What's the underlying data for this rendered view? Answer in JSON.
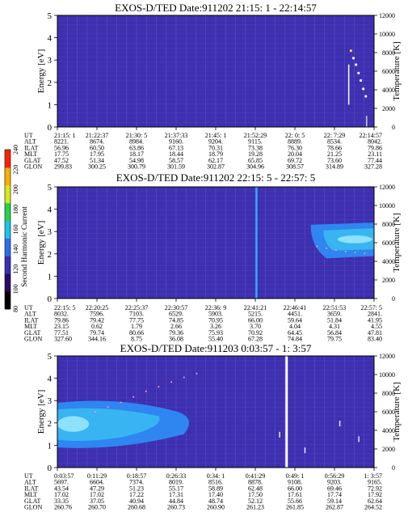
{
  "colorbar": {
    "label": "Second Harmonic Current",
    "ticks": [
      "80",
      "100",
      "120",
      "140",
      "160",
      "180",
      "200",
      "220",
      "240"
    ],
    "range": [
      80,
      240
    ],
    "colors": [
      "#000000",
      "#2a0a66",
      "#3a2fb8",
      "#2f6cf0",
      "#19c6e8",
      "#27d24a",
      "#d8e81f",
      "#ffb000",
      "#ff2200"
    ]
  },
  "style": {
    "background": "#3d2fb0",
    "grid": "#6f68d8",
    "enhancement_outer": "#2f86f0",
    "enhancement_mid": "#38b4f2",
    "enhancement_core": "#8fe2ff",
    "trace_white": "#f4f4f4",
    "trace_yellow": "#ffd23a",
    "trace_dots": "#ff9ab5"
  },
  "row_labels": [
    "UT",
    "ALT",
    "ILAT",
    "MLT",
    "GLAT",
    "GLON"
  ],
  "chart_data": [
    {
      "type": "heatmap",
      "title": "EXOS-D/TED   Date:911202  21:15: 1 - 22:14:57",
      "ylabel": "Energy [eV]",
      "y2label": "Temperature [K]",
      "ylim": [
        0,
        5
      ],
      "y2lim": [
        0,
        12000
      ],
      "y_ticks": [
        "0",
        "1",
        "2",
        "3",
        "4",
        "5"
      ],
      "y2_ticks": [
        "0",
        "2000",
        "4000",
        "6000",
        "8000",
        "10000",
        "12000"
      ],
      "grid": true,
      "x_table": [
        [
          "21:15: 1",
          "21:22:37",
          "21:30: 5",
          "21:37:33",
          "21:45: 1",
          "21:52:29",
          "22: 0: 5",
          "22: 7:29",
          "22:14:57"
        ],
        [
          "8221.",
          "8674.",
          "8984.",
          "9160.",
          "9204.",
          "9115.",
          "8889.",
          "8534.",
          "8042."
        ],
        [
          "56.96",
          "60.50",
          "63.86",
          "67.13",
          "70.31",
          "73.38",
          "76.30",
          "78.66",
          "79.86"
        ],
        [
          "17.75",
          "17.95",
          "18.17",
          "18.44",
          "18.79",
          "19.28",
          "20.04",
          "21.25",
          "23.11"
        ],
        [
          "47.52",
          "51.34",
          "54.98",
          "58.57",
          "62.17",
          "65.85",
          "69.72",
          "73.60",
          "77.44"
        ],
        [
          "299.83",
          "300.25",
          "300.79",
          "301.59",
          "302.87",
          "304.96",
          "308.57",
          "314.89",
          "327.28"
        ]
      ],
      "temperature_trace": {
        "x": [
          0.927,
          0.935,
          0.943,
          0.951,
          0.958,
          0.966,
          0.974
        ],
        "y": [
          8200,
          7400,
          6700,
          5800,
          5000,
          4100,
          3300
        ]
      }
    },
    {
      "type": "heatmap",
      "title": "EXOS-D/TED   Date:911202  22:15: 5 - 22:57: 5",
      "ylabel": "Energy [eV]",
      "y2label": "Temperature [K]",
      "ylim": [
        0,
        5
      ],
      "y2lim": [
        0,
        12000
      ],
      "y_ticks": [
        "0",
        "1",
        "2",
        "3",
        "4",
        "5"
      ],
      "y2_ticks": [
        "0",
        "2000",
        "4000",
        "6000",
        "8000",
        "10000",
        "12000"
      ],
      "grid": true,
      "x_table": [
        [
          "22:15: 5",
          "22:20:25",
          "22:25:37",
          "22:30:57",
          "22:36: 9",
          "22:41:21",
          "22:46:41",
          "22:51:53",
          "22:57: 5"
        ],
        [
          "8032.",
          "7596.",
          "7103.",
          "6529.",
          "5903.",
          "5215.",
          "4451.",
          "3659.",
          "2841."
        ],
        [
          "79.86",
          "79.42",
          "77.75",
          "74.85",
          "70.95",
          "66.00",
          "59.64",
          "51.84",
          "41.95"
        ],
        [
          "23.15",
          "0.62",
          "1.79",
          "2.66",
          "3.26",
          "3.70",
          "4.04",
          "4.31",
          "4.55"
        ],
        [
          "77.51",
          "79.74",
          "80.66",
          "79.36",
          "75.93",
          "70.92",
          "64.45",
          "56.84",
          "47.81"
        ],
        [
          "327.60",
          "344.16",
          "8.75",
          "36.08",
          "55.40",
          "67.28",
          "74.84",
          "79.75",
          "83.40"
        ]
      ],
      "temperature_trace": {
        "x": [
          0.82,
          0.85,
          0.88,
          0.91,
          0.94,
          0.97,
          1.0
        ],
        "y": [
          5600,
          5400,
          5200,
          5050,
          4950,
          4850,
          4800
        ]
      }
    },
    {
      "type": "heatmap",
      "title": "EXOS-D/TED   Date:911203  0:03:57 - 1: 3:57",
      "ylabel": "Energy [eV]",
      "y2label": "Temperature [K]",
      "ylim": [
        0,
        5
      ],
      "y2lim": [
        0,
        12000
      ],
      "y_ticks": [
        "0",
        "1",
        "2",
        "3",
        "4",
        "5"
      ],
      "y2_ticks": [
        "0",
        "2000",
        "4000",
        "6000",
        "8000",
        "10000",
        "12000"
      ],
      "grid": true,
      "x_table": [
        [
          "0:03:57",
          "0:11:29",
          "0:18:57",
          "0:26:33",
          "0:34: 1",
          "0:41:29",
          "0:49: 1",
          "0:56:29",
          "1: 3:57"
        ],
        [
          "5697.",
          "6604.",
          "7374.",
          "8019.",
          "8516.",
          "8878.",
          "9108.",
          "9203.",
          "9165."
        ],
        [
          "43.54",
          "47.29",
          "51.23",
          "55.17",
          "58.89",
          "62.48",
          "66.00",
          "69.46",
          "72.92"
        ],
        [
          "17.02",
          "17.02",
          "17.22",
          "17.31",
          "17.40",
          "17.50",
          "17.61",
          "17.74",
          "17.92"
        ],
        [
          "33.35",
          "37.05",
          "40.94",
          "44.84",
          "48.74",
          "52.12",
          "55.66",
          "59.14",
          "62.64"
        ],
        [
          "260.76",
          "260.70",
          "260.68",
          "260.73",
          "260.90",
          "261.23",
          "261.85",
          "262.87",
          "264.52"
        ]
      ],
      "temperature_trace": {
        "x": [
          0.12,
          0.16,
          0.2,
          0.24,
          0.28,
          0.32,
          0.36,
          0.4,
          0.44
        ],
        "y": [
          6000,
          6500,
          7000,
          7600,
          8200,
          8700,
          9200,
          9700,
          10100
        ]
      }
    }
  ]
}
